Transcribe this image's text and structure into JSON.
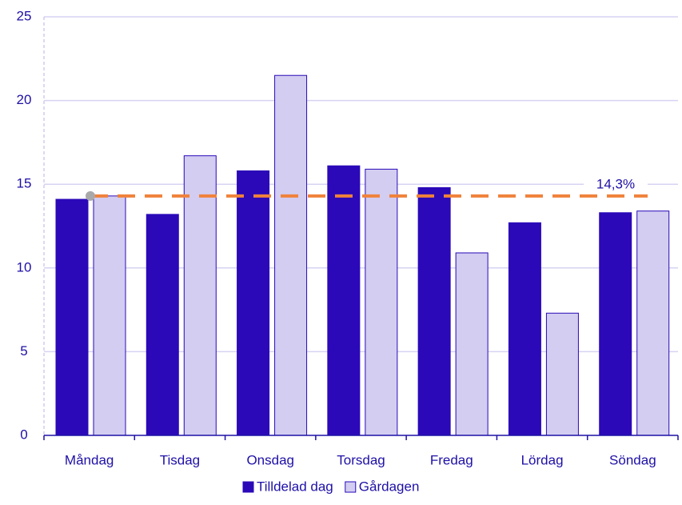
{
  "chart_data": {
    "type": "bar",
    "categories": [
      "Måndag",
      "Tisdag",
      "Onsdag",
      "Torsdag",
      "Fredag",
      "Lördag",
      "Söndag"
    ],
    "series": [
      {
        "name": "Tilldelad dag",
        "color": "#2b09b8",
        "values": [
          14.1,
          13.2,
          15.8,
          16.1,
          14.8,
          12.7,
          13.3
        ]
      },
      {
        "name": "Gårdagen",
        "color": "#d2cdf1",
        "values": [
          14.3,
          16.7,
          21.5,
          15.9,
          10.9,
          7.3,
          13.4
        ]
      }
    ],
    "reference_line": {
      "value": 14.3,
      "label": "14,3%",
      "color": "#f0823a"
    },
    "ylim": [
      0,
      25
    ],
    "yticks": [
      0,
      5,
      10,
      15,
      20,
      25
    ],
    "grid": true,
    "legend": "bottom"
  }
}
